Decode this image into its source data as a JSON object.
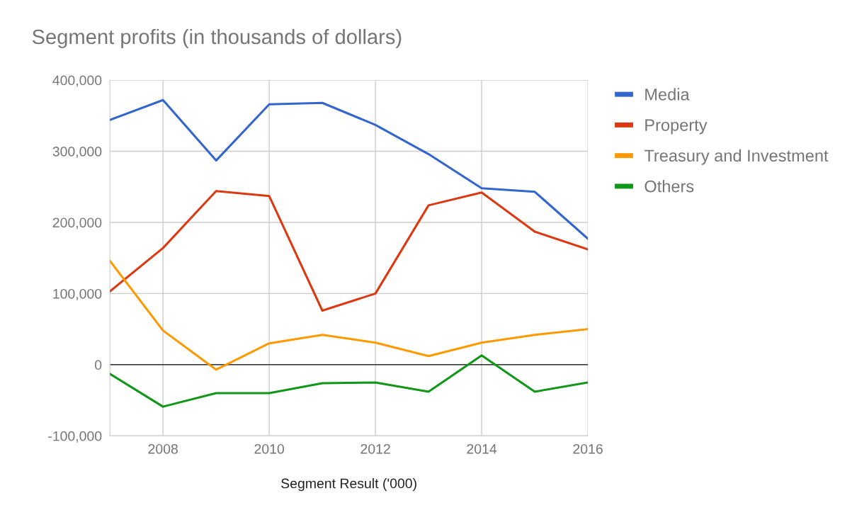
{
  "chart_data": {
    "type": "line",
    "title": "Segment profits (in thousands of dollars)",
    "xlabel": "Segment Result ('000)",
    "x": [
      2007,
      2008,
      2009,
      2010,
      2011,
      2012,
      2013,
      2014,
      2015,
      2016
    ],
    "series": [
      {
        "name": "Media",
        "color": "#3366cc",
        "values": [
          344000,
          372000,
          287000,
          366000,
          368000,
          337000,
          296000,
          248000,
          243000,
          177000
        ]
      },
      {
        "name": "Property",
        "color": "#dc3912",
        "values": [
          103000,
          164000,
          244000,
          237000,
          76000,
          100000,
          224000,
          242000,
          187000,
          162000
        ]
      },
      {
        "name": "Treasury and Investment",
        "color": "#ff9900",
        "values": [
          146000,
          48000,
          -7000,
          30000,
          42000,
          31000,
          12000,
          31000,
          42000,
          50000
        ]
      },
      {
        "name": "Others",
        "color": "#109618",
        "values": [
          -13000,
          -59000,
          -40000,
          -40000,
          -26000,
          -25000,
          -38000,
          13000,
          -38000,
          -25000
        ]
      }
    ],
    "xlim": [
      2007,
      2016
    ],
    "xticks": [
      2008,
      2010,
      2012,
      2014,
      2016
    ],
    "ylim": [
      -100000,
      400000
    ],
    "yticks": [
      {
        "value": -100000,
        "label": "-100,000"
      },
      {
        "value": 0,
        "label": "0"
      },
      {
        "value": 100000,
        "label": "100,000"
      },
      {
        "value": 200000,
        "label": "200,000"
      },
      {
        "value": 300000,
        "label": "300,000"
      },
      {
        "value": 400000,
        "label": "400,000"
      }
    ],
    "ref_lines": [
      {
        "axis": "y",
        "value": 0,
        "color": "#333333"
      }
    ],
    "grid": true,
    "legend": "right",
    "marker": "none",
    "line_style": "solid"
  }
}
